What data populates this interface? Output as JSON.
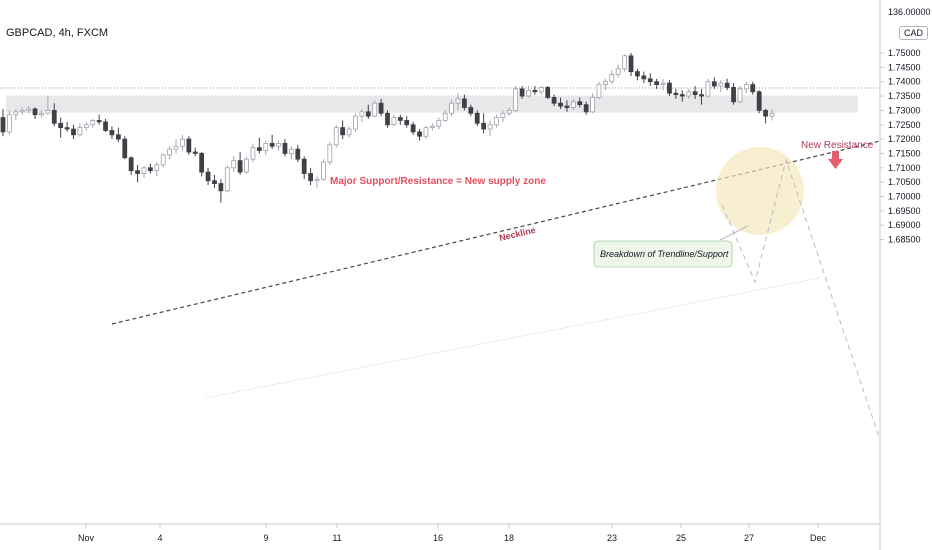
{
  "header": {
    "symbol": "GBPCAD, 4h, FXCM",
    "currency": "CAD"
  },
  "chart_data": {
    "type": "candlestick",
    "symbol": "GBPCAD",
    "timeframe": "4h",
    "broker": "FXCM",
    "y_axis": {
      "ticks": [
        "1.75000",
        "1.74500",
        "1.74000",
        "1.73500",
        "1.73000",
        "1.72500",
        "1.72000",
        "1.71500",
        "1.71000",
        "1.70500",
        "1.70000",
        "1.69500",
        "1.69000",
        "1.68500"
      ],
      "top_label": "136.00000",
      "range": [
        1.6836,
        1.7566
      ]
    },
    "x_axis": {
      "ticks": [
        "Nov",
        "4",
        "9",
        "11",
        "16",
        "18",
        "23",
        "25",
        "27",
        "Dec"
      ]
    },
    "zone": {
      "label": "Major Support/Resistance = New supply zone",
      "top": 1.7352,
      "bottom": 1.7292
    },
    "dotted_level": 1.7378,
    "annotations": {
      "neckline": "Neckline",
      "new_resistance": "New Resistance",
      "breakdown": "Breakdown of Trendline/Support"
    },
    "candles_ohlc": [
      [
        1.7275,
        1.7305,
        1.721,
        1.7225
      ],
      [
        1.7225,
        1.73,
        1.7215,
        1.7285
      ],
      [
        1.7285,
        1.7305,
        1.7265,
        1.7295
      ],
      [
        1.7295,
        1.731,
        1.7285,
        1.73
      ],
      [
        1.73,
        1.7315,
        1.729,
        1.7305
      ],
      [
        1.7305,
        1.731,
        1.727,
        1.7285
      ],
      [
        1.7285,
        1.73,
        1.7275,
        1.729
      ],
      [
        1.729,
        1.735,
        1.7285,
        1.73
      ],
      [
        1.73,
        1.7325,
        1.7245,
        1.7255
      ],
      [
        1.7255,
        1.7275,
        1.7205,
        1.724
      ],
      [
        1.724,
        1.726,
        1.7225,
        1.7235
      ],
      [
        1.7235,
        1.725,
        1.72,
        1.7215
      ],
      [
        1.7215,
        1.7255,
        1.721,
        1.724
      ],
      [
        1.724,
        1.726,
        1.723,
        1.725
      ],
      [
        1.725,
        1.727,
        1.724,
        1.7265
      ],
      [
        1.7265,
        1.7285,
        1.725,
        1.726
      ],
      [
        1.726,
        1.727,
        1.7225,
        1.723
      ],
      [
        1.723,
        1.7245,
        1.72,
        1.7215
      ],
      [
        1.7215,
        1.724,
        1.719,
        1.72
      ],
      [
        1.72,
        1.721,
        1.713,
        1.7135
      ],
      [
        1.7135,
        1.714,
        1.7075,
        1.709
      ],
      [
        1.709,
        1.711,
        1.705,
        1.708
      ],
      [
        1.708,
        1.7105,
        1.7065,
        1.71
      ],
      [
        1.71,
        1.7115,
        1.708,
        1.709
      ],
      [
        1.709,
        1.712,
        1.707,
        1.711
      ],
      [
        1.711,
        1.715,
        1.71,
        1.7145
      ],
      [
        1.7145,
        1.7175,
        1.713,
        1.7165
      ],
      [
        1.7165,
        1.72,
        1.715,
        1.7175
      ],
      [
        1.7175,
        1.7215,
        1.716,
        1.72
      ],
      [
        1.72,
        1.721,
        1.7145,
        1.7155
      ],
      [
        1.7155,
        1.717,
        1.714,
        1.715
      ],
      [
        1.715,
        1.7155,
        1.707,
        1.7085
      ],
      [
        1.7085,
        1.71,
        1.704,
        1.7055
      ],
      [
        1.7055,
        1.7075,
        1.703,
        1.7045
      ],
      [
        1.7045,
        1.706,
        1.6978,
        1.702
      ],
      [
        1.702,
        1.711,
        1.7015,
        1.71
      ],
      [
        1.71,
        1.714,
        1.7085,
        1.7125
      ],
      [
        1.7125,
        1.7155,
        1.7075,
        1.7085
      ],
      [
        1.7085,
        1.714,
        1.708,
        1.713
      ],
      [
        1.713,
        1.7185,
        1.712,
        1.717
      ],
      [
        1.717,
        1.7205,
        1.715,
        1.716
      ],
      [
        1.716,
        1.7195,
        1.7145,
        1.7185
      ],
      [
        1.7185,
        1.7215,
        1.7165,
        1.7175
      ],
      [
        1.7175,
        1.7195,
        1.716,
        1.7185
      ],
      [
        1.7185,
        1.72,
        1.714,
        1.715
      ],
      [
        1.715,
        1.7175,
        1.713,
        1.7165
      ],
      [
        1.7165,
        1.718,
        1.712,
        1.713
      ],
      [
        1.713,
        1.714,
        1.706,
        1.708
      ],
      [
        1.708,
        1.71,
        1.704,
        1.7055
      ],
      [
        1.7055,
        1.707,
        1.703,
        1.706
      ],
      [
        1.706,
        1.713,
        1.7055,
        1.712
      ],
      [
        1.712,
        1.719,
        1.711,
        1.718
      ],
      [
        1.718,
        1.725,
        1.717,
        1.724
      ],
      [
        1.724,
        1.7265,
        1.72,
        1.7215
      ],
      [
        1.7215,
        1.7245,
        1.7205,
        1.7235
      ],
      [
        1.7235,
        1.729,
        1.7225,
        1.728
      ],
      [
        1.728,
        1.7305,
        1.726,
        1.7295
      ],
      [
        1.7295,
        1.732,
        1.727,
        1.728
      ],
      [
        1.728,
        1.7335,
        1.7275,
        1.7325
      ],
      [
        1.7325,
        1.734,
        1.728,
        1.729
      ],
      [
        1.729,
        1.73,
        1.724,
        1.725
      ],
      [
        1.725,
        1.7285,
        1.7245,
        1.7275
      ],
      [
        1.7275,
        1.7285,
        1.725,
        1.7265
      ],
      [
        1.7265,
        1.728,
        1.724,
        1.725
      ],
      [
        1.725,
        1.726,
        1.7215,
        1.7225
      ],
      [
        1.7225,
        1.7235,
        1.7195,
        1.721
      ],
      [
        1.721,
        1.7245,
        1.72,
        1.724
      ],
      [
        1.724,
        1.7255,
        1.723,
        1.7245
      ],
      [
        1.7245,
        1.7275,
        1.7235,
        1.7265
      ],
      [
        1.7265,
        1.73,
        1.726,
        1.729
      ],
      [
        1.729,
        1.7335,
        1.728,
        1.7325
      ],
      [
        1.7325,
        1.736,
        1.73,
        1.734
      ],
      [
        1.734,
        1.7355,
        1.73,
        1.731
      ],
      [
        1.731,
        1.732,
        1.728,
        1.729
      ],
      [
        1.729,
        1.73,
        1.7245,
        1.7255
      ],
      [
        1.7255,
        1.729,
        1.722,
        1.7235
      ],
      [
        1.7235,
        1.7265,
        1.721,
        1.725
      ],
      [
        1.725,
        1.7285,
        1.724,
        1.7275
      ],
      [
        1.7275,
        1.73,
        1.726,
        1.729
      ],
      [
        1.729,
        1.731,
        1.728,
        1.73
      ],
      [
        1.73,
        1.7385,
        1.7295,
        1.7375
      ],
      [
        1.7375,
        1.7385,
        1.734,
        1.735
      ],
      [
        1.735,
        1.7385,
        1.7345,
        1.737
      ],
      [
        1.737,
        1.7385,
        1.7355,
        1.7365
      ],
      [
        1.7365,
        1.7385,
        1.7355,
        1.738
      ],
      [
        1.738,
        1.7385,
        1.734,
        1.7345
      ],
      [
        1.7345,
        1.7355,
        1.7315,
        1.7325
      ],
      [
        1.7325,
        1.7345,
        1.7305,
        1.7315
      ],
      [
        1.7315,
        1.7335,
        1.7295,
        1.731
      ],
      [
        1.731,
        1.734,
        1.73,
        1.733
      ],
      [
        1.733,
        1.7345,
        1.731,
        1.732
      ],
      [
        1.732,
        1.733,
        1.7285,
        1.7295
      ],
      [
        1.7295,
        1.736,
        1.729,
        1.7345
      ],
      [
        1.7345,
        1.74,
        1.734,
        1.739
      ],
      [
        1.739,
        1.741,
        1.737,
        1.74
      ],
      [
        1.74,
        1.744,
        1.739,
        1.7425
      ],
      [
        1.7425,
        1.746,
        1.7415,
        1.7445
      ],
      [
        1.7445,
        1.7495,
        1.7435,
        1.749
      ],
      [
        1.749,
        1.75,
        1.742,
        1.7435
      ],
      [
        1.7435,
        1.7445,
        1.7405,
        1.742
      ],
      [
        1.742,
        1.7435,
        1.7395,
        1.741
      ],
      [
        1.741,
        1.743,
        1.7385,
        1.74
      ],
      [
        1.74,
        1.741,
        1.7375,
        1.739
      ],
      [
        1.739,
        1.741,
        1.737,
        1.7395
      ],
      [
        1.7395,
        1.7405,
        1.735,
        1.736
      ],
      [
        1.736,
        1.7375,
        1.734,
        1.7355
      ],
      [
        1.7355,
        1.737,
        1.733,
        1.735
      ],
      [
        1.735,
        1.7375,
        1.734,
        1.7365
      ],
      [
        1.7365,
        1.7385,
        1.734,
        1.7355
      ],
      [
        1.7355,
        1.7375,
        1.732,
        1.735
      ],
      [
        1.735,
        1.741,
        1.7345,
        1.74
      ],
      [
        1.74,
        1.7415,
        1.7375,
        1.7385
      ],
      [
        1.7385,
        1.7405,
        1.7365,
        1.7395
      ],
      [
        1.7395,
        1.741,
        1.737,
        1.738
      ],
      [
        1.738,
        1.7395,
        1.732,
        1.733
      ],
      [
        1.733,
        1.7385,
        1.7325,
        1.7375
      ],
      [
        1.7375,
        1.74,
        1.736,
        1.739
      ],
      [
        1.739,
        1.74,
        1.7355,
        1.7365
      ],
      [
        1.7365,
        1.737,
        1.729,
        1.73
      ],
      [
        1.73,
        1.7305,
        1.7255,
        1.728
      ],
      [
        1.728,
        1.7305,
        1.7265,
        1.729
      ]
    ]
  }
}
